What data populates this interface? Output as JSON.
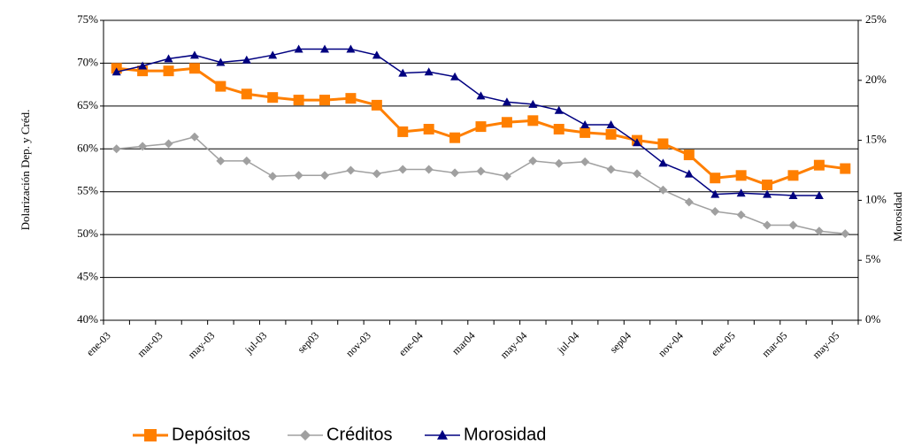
{
  "chart_data": {
    "type": "line",
    "y_label": "Dolarización Dep. y Créd.",
    "y2_label": "Morosidad",
    "categories": [
      "ene-03",
      null,
      "mar-03",
      null,
      "may-03",
      null,
      "jul-03",
      null,
      "sep03",
      null,
      "nov-03",
      null,
      "ene-04",
      null,
      "mar04",
      null,
      "may-04",
      null,
      "jul-04",
      null,
      "sep04",
      null,
      "nov-04",
      null,
      "ene-05",
      null,
      "mar-05",
      null,
      "may-05"
    ],
    "series": [
      {
        "name": "Depósitos",
        "color": "#ff7f00",
        "marker": "square",
        "values": [
          69.4,
          69.1,
          69.1,
          69.4,
          67.3,
          66.4,
          66.0,
          65.7,
          65.7,
          65.9,
          65.1,
          62.0,
          62.3,
          61.3,
          62.6,
          63.1,
          63.3,
          62.3,
          61.9,
          61.7,
          61.0,
          60.6,
          59.3,
          56.6,
          56.9,
          55.8,
          56.9,
          58.1,
          57.7
        ]
      },
      {
        "name": "Créditos",
        "color": "#a0a0a0",
        "marker": "diamond",
        "values": [
          60.0,
          60.3,
          60.6,
          61.4,
          58.6,
          58.6,
          56.8,
          56.9,
          56.9,
          57.5,
          57.1,
          57.6,
          57.6,
          57.2,
          57.4,
          56.8,
          58.6,
          58.3,
          58.5,
          57.6,
          57.1,
          55.2,
          53.8,
          52.7,
          52.3,
          51.1,
          51.1,
          50.4,
          50.1
        ]
      },
      {
        "name": "Morosidad",
        "color": "#000080",
        "marker": "triangle",
        "axis": "y2",
        "values": [
          20.7,
          21.2,
          21.8,
          22.1,
          21.5,
          21.7,
          22.1,
          22.6,
          22.6,
          22.6,
          22.1,
          20.6,
          20.7,
          20.3,
          18.7,
          18.2,
          18.0,
          17.5,
          16.3,
          16.3,
          14.8,
          13.1,
          12.2,
          10.5,
          10.6,
          10.5,
          10.4,
          10.4,
          null
        ]
      }
    ],
    "ylim": [
      40,
      75
    ],
    "yticks": [
      {
        "value": 40,
        "label": "40%"
      },
      {
        "value": 45,
        "label": "45%"
      },
      {
        "value": 50,
        "label": "50%"
      },
      {
        "value": 55,
        "label": "55%"
      },
      {
        "value": 60,
        "label": "60%"
      },
      {
        "value": 65,
        "label": "65%"
      },
      {
        "value": 70,
        "label": "70%"
      },
      {
        "value": 75,
        "label": "75%"
      }
    ],
    "y2lim": [
      0,
      25
    ],
    "y2ticks": [
      {
        "value": 0,
        "label": "0%"
      },
      {
        "value": 5,
        "label": "5%"
      },
      {
        "value": 10,
        "label": "10%"
      },
      {
        "value": 15,
        "label": "15%"
      },
      {
        "value": 20,
        "label": "20%"
      },
      {
        "value": 25,
        "label": "25%"
      }
    ],
    "grid": true,
    "legend": "bottom"
  }
}
